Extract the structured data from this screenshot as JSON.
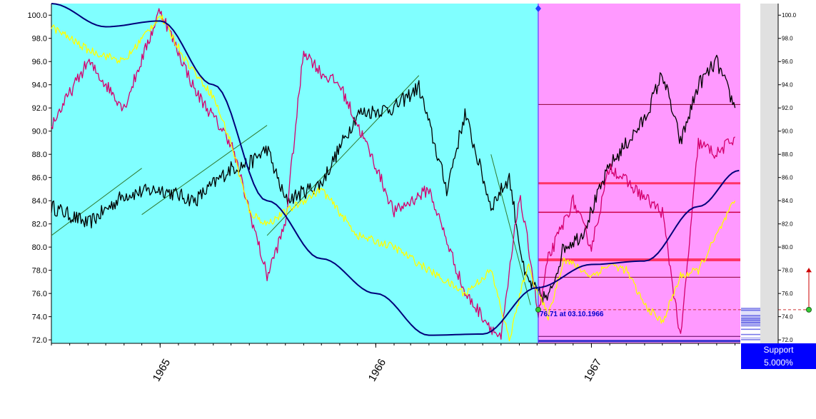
{
  "chart_data": {
    "type": "line",
    "title": "",
    "xlabel": "",
    "ylabel": "",
    "ylim": [
      71.7,
      101.0
    ],
    "xlim": [
      "1964-07-01",
      "1967-09-10"
    ],
    "y_ticks": [
      72.0,
      74.0,
      76.0,
      78.0,
      80.0,
      82.0,
      84.0,
      86.0,
      88.0,
      90.0,
      92.0,
      94.0,
      96.0,
      98.0,
      100.0
    ],
    "x_ticks": [
      {
        "label": "1965",
        "date": "1965-01-01"
      },
      {
        "label": "1966",
        "date": "1966-01-01"
      },
      {
        "label": "1967",
        "date": "1967-01-01"
      }
    ],
    "divider_date": "1966-10-03",
    "background_colors": {
      "history": "#80ffff",
      "forecast": "#ff99ff"
    },
    "series": [
      {
        "color": "#000000",
        "x": [
          "1964-07-01",
          "1964-09-01",
          "1964-11-01",
          "1965-01-01",
          "1965-03-01",
          "1965-05-01",
          "1965-06-01",
          "1965-07-01",
          "1965-08-01",
          "1965-10-01",
          "1965-12-01",
          "1966-02-01",
          "1966-03-15",
          "1966-05-01",
          "1966-06-01",
          "1966-07-15",
          "1966-08-15",
          "1966-09-10",
          "1966-10-03",
          "1966-10-20",
          "1966-11-15",
          "1966-12-15",
          "1967-02-01",
          "1967-04-01",
          "1967-05-01",
          "1967-06-01",
          "1967-07-01",
          "1967-08-01",
          "1967-09-01"
        ],
        "y": [
          83.5,
          82.0,
          84.5,
          85.0,
          84.0,
          86.8,
          87.2,
          88.5,
          84.0,
          85.5,
          91.5,
          92.0,
          93.8,
          85.0,
          91.5,
          83.5,
          86.0,
          77.5,
          76.0,
          75.5,
          80.0,
          81.0,
          87.0,
          91.0,
          95.0,
          89.0,
          94.0,
          96.0,
          92.0
        ]
      },
      {
        "color": "#d4006e",
        "x": [
          "1964-07-01",
          "1964-09-01",
          "1964-11-01",
          "1965-01-01",
          "1965-03-01",
          "1965-05-01",
          "1965-07-01",
          "1965-08-01",
          "1965-09-01",
          "1965-10-01",
          "1965-11-01",
          "1966-01-01",
          "1966-02-01",
          "1966-04-01",
          "1966-06-01",
          "1966-08-01",
          "1966-09-01",
          "1966-09-20",
          "1966-10-03",
          "1966-10-20",
          "1966-12-01",
          "1967-01-01",
          "1967-02-01",
          "1967-03-15",
          "1967-05-01",
          "1967-06-01",
          "1967-07-01",
          "1967-08-01",
          "1967-09-01"
        ],
        "y": [
          90.5,
          96.0,
          92.0,
          100.5,
          93.5,
          89.0,
          77.5,
          82.0,
          97.0,
          95.0,
          94.0,
          87.0,
          83.0,
          85.0,
          76.0,
          72.0,
          84.5,
          79.0,
          74.0,
          79.0,
          84.0,
          80.0,
          87.0,
          85.0,
          83.0,
          72.0,
          89.0,
          88.0,
          89.5
        ]
      },
      {
        "color": "#ffff00",
        "x": [
          "1964-07-01",
          "1964-09-01",
          "1964-11-01",
          "1965-01-01",
          "1965-02-15",
          "1965-04-01",
          "1965-05-01",
          "1965-06-01",
          "1965-07-01",
          "1965-08-01",
          "1965-10-01",
          "1965-12-01",
          "1966-02-01",
          "1966-04-01",
          "1966-06-01",
          "1966-07-15",
          "1966-08-15",
          "1966-09-15",
          "1966-10-03",
          "1966-10-20",
          "1966-11-15",
          "1967-01-01",
          "1967-02-01",
          "1967-03-01",
          "1967-04-01",
          "1967-05-01",
          "1967-06-01",
          "1967-07-01",
          "1967-08-01",
          "1967-09-01"
        ],
        "y": [
          99.0,
          97.0,
          96.0,
          100.0,
          96.0,
          93.0,
          89.0,
          83.0,
          82.0,
          83.0,
          85.0,
          81.0,
          80.0,
          78.0,
          76.0,
          78.0,
          72.0,
          78.5,
          76.0,
          74.0,
          79.0,
          77.5,
          78.5,
          78.0,
          75.0,
          73.5,
          77.5,
          78.0,
          81.0,
          84.0
        ]
      },
      {
        "color": "#00007a",
        "x": [
          "1964-07-01",
          "1964-10-01",
          "1965-01-01",
          "1965-04-01",
          "1965-07-01",
          "1965-10-01",
          "1966-01-01",
          "1966-04-01",
          "1966-07-01",
          "1966-10-01",
          "1967-01-01",
          "1967-04-01",
          "1967-07-01",
          "1967-09-08"
        ],
        "y": [
          101.0,
          99.0,
          99.5,
          94.0,
          84.0,
          79.0,
          76.0,
          72.4,
          72.5,
          76.5,
          78.5,
          78.8,
          83.5,
          86.6
        ]
      }
    ],
    "trend_lines": [
      {
        "x": [
          "1964-07-01",
          "1964-12-01"
        ],
        "y": [
          81.0,
          86.8
        ]
      },
      {
        "x": [
          "1964-12-01",
          "1965-07-01"
        ],
        "y": [
          82.8,
          90.5
        ]
      },
      {
        "x": [
          "1965-07-01",
          "1966-03-15"
        ],
        "y": [
          81.0,
          94.8
        ]
      },
      {
        "x": [
          "1966-07-15",
          "1966-09-20"
        ],
        "y": [
          88.0,
          75.0
        ]
      }
    ],
    "horizontal_levels": [
      {
        "y": 92.3,
        "color": "#8b0030",
        "width": 1
      },
      {
        "y": 85.5,
        "color": "#ff3366",
        "width": 3
      },
      {
        "y": 83.0,
        "color": "#cc0044",
        "width": 1.5
      },
      {
        "y": 78.9,
        "color": "#ff3366",
        "width": 4
      },
      {
        "y": 77.4,
        "color": "#8b0030",
        "width": 1
      },
      {
        "y": 72.3,
        "color": "#5a005a",
        "width": 1
      },
      {
        "y": 71.9,
        "color": "#3030cc",
        "width": 3
      }
    ],
    "support_line_y": 74.6,
    "annotation": "76.71 at 03.10.1966",
    "support_label": "Support",
    "support_percent": "5.000%"
  }
}
